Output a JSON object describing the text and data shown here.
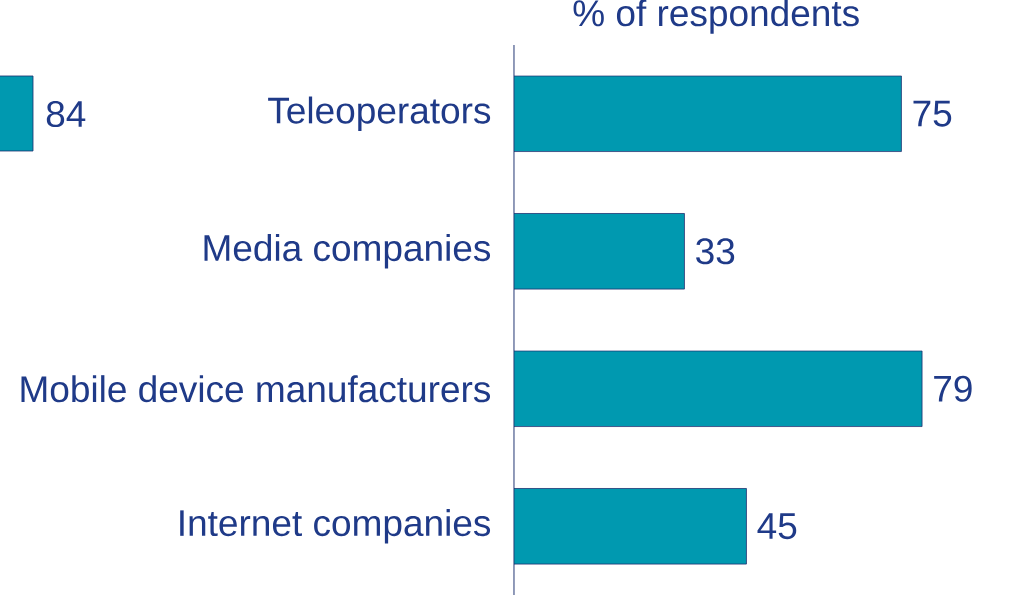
{
  "chart_data": {
    "type": "bar",
    "orientation": "horizontal",
    "title": "% of respondents",
    "categories": [
      "Teleoperators",
      "Media companies",
      "Mobile device manufacturers",
      "Internet companies"
    ],
    "values": [
      75,
      33,
      79,
      45
    ],
    "color": "#0099b0",
    "data_labels": true,
    "annotations": [
      "84"
    ]
  }
}
